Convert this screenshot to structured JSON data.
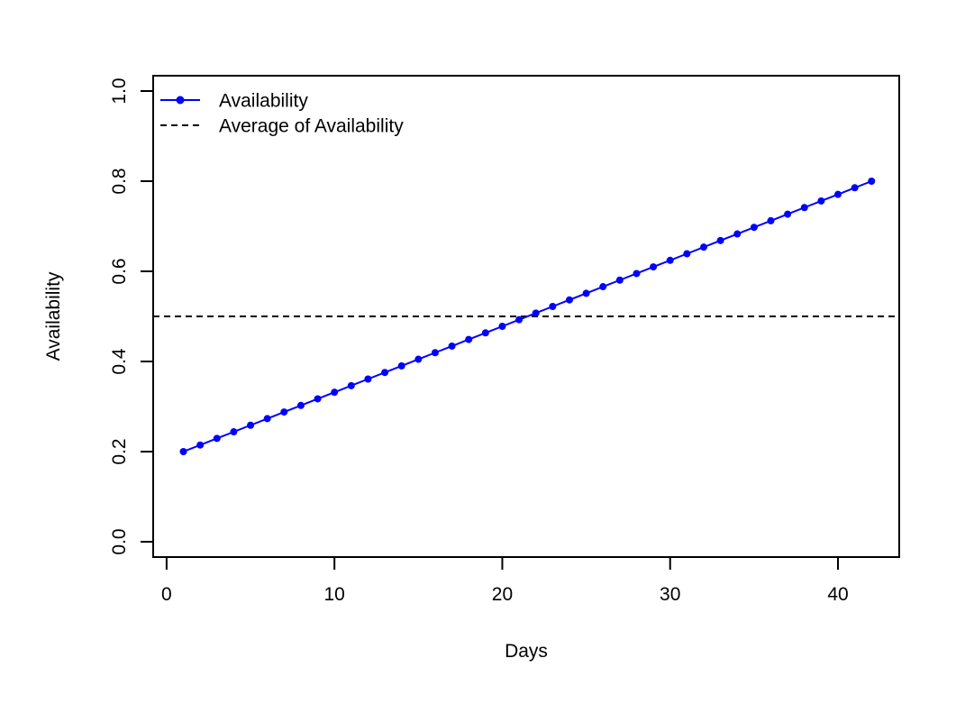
{
  "chart_data": {
    "type": "line",
    "title": "",
    "xlabel": "Days",
    "ylabel": "Availability",
    "xlim": [
      -0.8,
      43.65
    ],
    "ylim": [
      -0.034,
      1.034
    ],
    "xticks": [
      "0",
      "10",
      "20",
      "30",
      "40"
    ],
    "xtick_values": [
      0,
      10,
      20,
      30,
      40
    ],
    "yticks": [
      "0.0",
      "0.2",
      "0.4",
      "0.6",
      "0.8",
      "1.0"
    ],
    "ytick_values": [
      0.0,
      0.2,
      0.4,
      0.6,
      0.8,
      1.0
    ],
    "grid": false,
    "legend": {
      "position": "topleft",
      "border": false,
      "entries": [
        {
          "label": "Availability",
          "style": "solid-line-with-marker",
          "color": "#0000FF"
        },
        {
          "label": "Average of Availability",
          "style": "dashed-line",
          "color": "#000000"
        }
      ]
    },
    "series": [
      {
        "name": "Availability",
        "type": "line-with-markers",
        "color": "#0000FF",
        "marker": "filled-circle",
        "x": [
          1,
          2,
          3,
          4,
          5,
          6,
          7,
          8,
          9,
          10,
          11,
          12,
          13,
          14,
          15,
          16,
          17,
          18,
          19,
          20,
          21,
          22,
          23,
          24,
          25,
          26,
          27,
          28,
          29,
          30,
          31,
          32,
          33,
          34,
          35,
          36,
          37,
          38,
          39,
          40,
          41,
          42
        ],
        "y": [
          0.2,
          0.2146,
          0.2293,
          0.2439,
          0.2585,
          0.2732,
          0.2878,
          0.3024,
          0.3171,
          0.3317,
          0.3463,
          0.361,
          0.3756,
          0.3902,
          0.4049,
          0.4195,
          0.4341,
          0.4488,
          0.4634,
          0.478,
          0.4927,
          0.5073,
          0.522,
          0.5366,
          0.5512,
          0.5659,
          0.5805,
          0.5951,
          0.6098,
          0.6244,
          0.639,
          0.6537,
          0.6683,
          0.6829,
          0.6976,
          0.7122,
          0.7268,
          0.7415,
          0.7561,
          0.7707,
          0.7854,
          0.8
        ]
      },
      {
        "name": "Average of Availability",
        "type": "horizontal-line",
        "color": "#000000",
        "dashed": true,
        "value": 0.5
      }
    ],
    "colors": {
      "series_blue": "#0000FF",
      "axis_black": "#000000",
      "background": "#FFFFFF"
    }
  }
}
